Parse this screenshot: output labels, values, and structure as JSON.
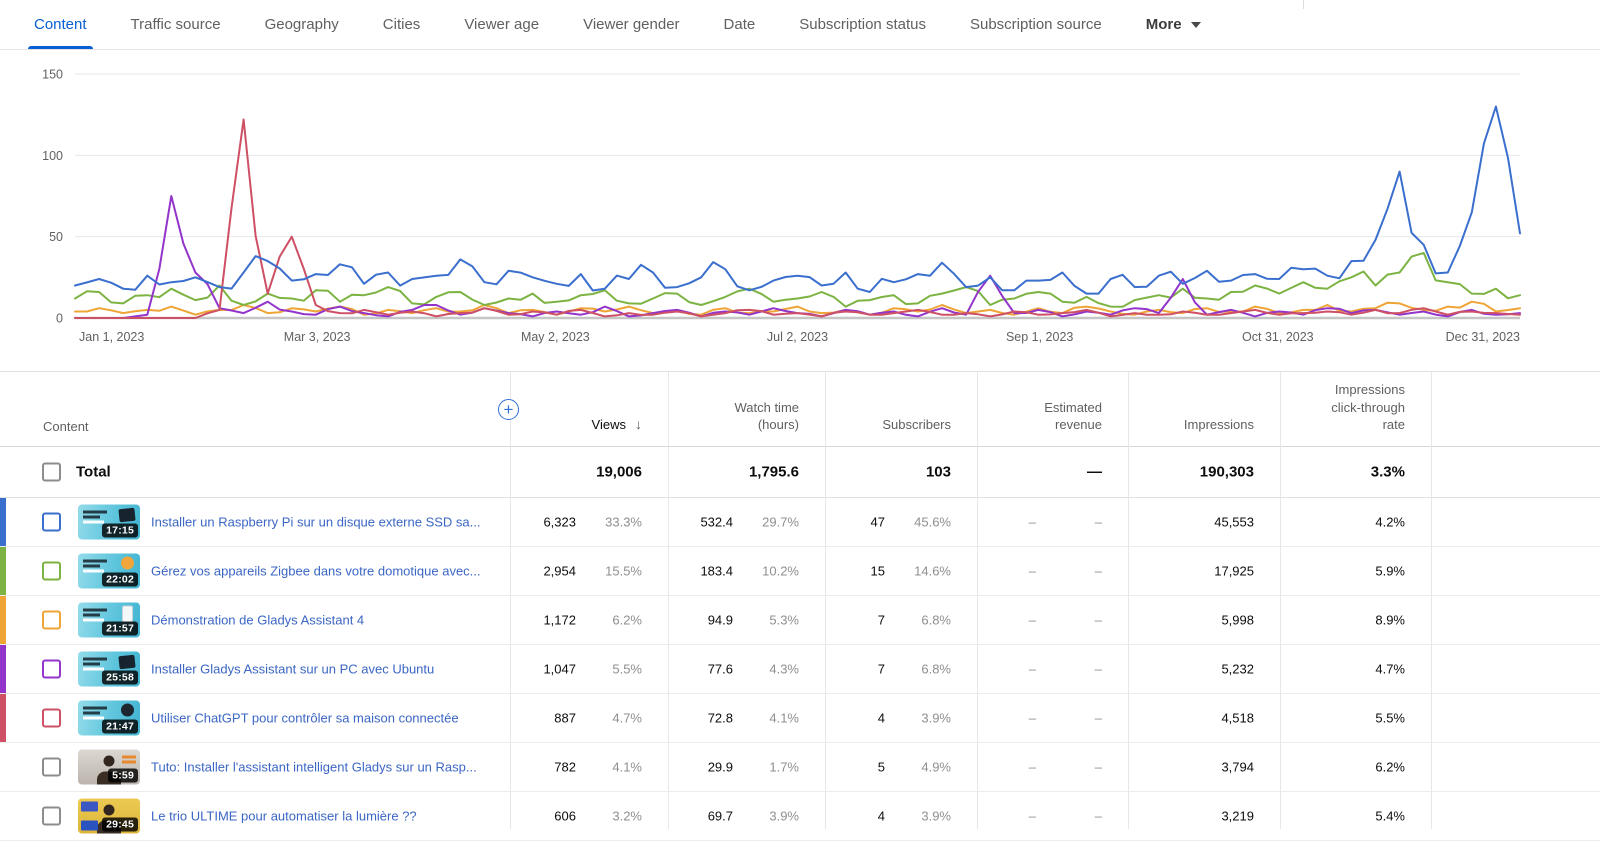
{
  "colors": {
    "accent": "#065fd4",
    "link": "#3b66c4",
    "series": [
      "#3b6fce",
      "#7cb342",
      "#efa436",
      "#9334cb",
      "#ce5064"
    ],
    "grid": "#e8e8e8",
    "axis_text": "#616161",
    "pct_gray": "#8f8f8f"
  },
  "tabs": {
    "items": [
      {
        "label": "Content",
        "active": true
      },
      {
        "label": "Traffic source",
        "active": false
      },
      {
        "label": "Geography",
        "active": false
      },
      {
        "label": "Cities",
        "active": false
      },
      {
        "label": "Viewer age",
        "active": false
      },
      {
        "label": "Viewer gender",
        "active": false
      },
      {
        "label": "Date",
        "active": false
      },
      {
        "label": "Subscription status",
        "active": false
      },
      {
        "label": "Subscription source",
        "active": false
      }
    ],
    "more_label": "More"
  },
  "chart_data": {
    "type": "line",
    "title": "",
    "xlabel": "",
    "ylabel": "",
    "grid": true,
    "legend": "none",
    "ylim": [
      0,
      150
    ],
    "y_ticks": [
      0,
      50,
      100,
      150
    ],
    "days_total": 364,
    "x_tick_labels": [
      {
        "text": "Jan 1, 2023",
        "day": 0
      },
      {
        "text": "Mar 3, 2023",
        "day": 61
      },
      {
        "text": "May 2, 2023",
        "day": 121
      },
      {
        "text": "Jul 2, 2023",
        "day": 182
      },
      {
        "text": "Sep 1, 2023",
        "day": 243
      },
      {
        "text": "Oct 31, 2023",
        "day": 303
      },
      {
        "text": "Dec 31, 2023",
        "day": 364
      }
    ],
    "series": [
      {
        "name": "Installer un Raspberry Pi sur un disque externe SSD sa...",
        "color": "#3b6fce",
        "values": [
          20,
          24,
          18,
          26,
          22,
          25,
          19,
          28,
          35,
          23,
          27,
          33,
          21,
          28,
          24,
          26,
          36,
          22,
          29,
          25,
          21,
          27,
          18,
          24,
          28,
          19,
          25,
          30,
          17,
          23,
          26,
          20,
          28,
          16,
          22,
          27,
          34,
          19,
          25,
          17,
          23,
          28,
          15,
          24,
          19,
          26,
          21,
          29,
          23,
          27,
          24,
          30,
          26,
          35,
          48,
          90,
          45,
          28,
          65,
          130,
          52
        ]
      },
      {
        "name": "Gérez vos appareils Zigbee dans votre domotique avec...",
        "color": "#7cb342",
        "values": [
          12,
          16,
          9,
          14,
          18,
          11,
          20,
          8,
          15,
          12,
          17,
          10,
          14,
          19,
          9,
          13,
          16,
          8,
          12,
          15,
          10,
          14,
          17,
          9,
          12,
          15,
          8,
          13,
          18,
          10,
          12,
          16,
          7,
          11,
          14,
          9,
          15,
          19,
          8,
          12,
          16,
          10,
          13,
          7,
          11,
          14,
          18,
          12,
          16,
          20,
          15,
          22,
          18,
          25,
          20,
          28,
          40,
          22,
          15,
          18,
          14
        ]
      },
      {
        "name": "Démonstration de Gladys Assistant 4",
        "color": "#efa436",
        "values": [
          4,
          6,
          3,
          5,
          7,
          2,
          5,
          8,
          3,
          6,
          4,
          7,
          2,
          5,
          3,
          6,
          4,
          8,
          3,
          5,
          2,
          6,
          4,
          7,
          3,
          5,
          2,
          6,
          3,
          4,
          7,
          3,
          5,
          2,
          6,
          4,
          8,
          3,
          5,
          2,
          6,
          3,
          7,
          4,
          2,
          5,
          3,
          6,
          4,
          7,
          3,
          5,
          8,
          4,
          6,
          9,
          5,
          7,
          10,
          4,
          6
        ]
      },
      {
        "name": "Installer Gladys Assistant sur un PC avec Ubuntu",
        "color": "#9334cb",
        "values": [
          0,
          0,
          0,
          2,
          75,
          28,
          6,
          3,
          10,
          4,
          2,
          7,
          3,
          1,
          5,
          8,
          2,
          6,
          3,
          1,
          4,
          2,
          7,
          1,
          3,
          5,
          1,
          4,
          2,
          6,
          3,
          1,
          5,
          2,
          4,
          1,
          6,
          2,
          26,
          3,
          5,
          1,
          4,
          2,
          6,
          3,
          24,
          2,
          5,
          1,
          4,
          2,
          6,
          3,
          5,
          2,
          4,
          1,
          5,
          2,
          3
        ]
      },
      {
        "name": "Utiliser ChatGPT pour contrôler sa maison connectée",
        "color": "#ce5064",
        "values": [
          0,
          0,
          0,
          0,
          0,
          0,
          5,
          122,
          15,
          50,
          8,
          3,
          5,
          2,
          4,
          1,
          3,
          6,
          2,
          4,
          2,
          5,
          1,
          3,
          2,
          4,
          1,
          3,
          5,
          2,
          3,
          1,
          4,
          2,
          3,
          5,
          2,
          3,
          1,
          4,
          2,
          3,
          5,
          1,
          3,
          2,
          4,
          2,
          3,
          5,
          2,
          3,
          4,
          2,
          5,
          3,
          6,
          2,
          4,
          3,
          2
        ]
      }
    ]
  },
  "table": {
    "content_header": "Content",
    "add_metric_icon": "+",
    "sort_icon": "↓",
    "columns": [
      {
        "id": "views",
        "label": "Views",
        "sorted": true
      },
      {
        "id": "watch",
        "label": "Watch time\n(hours)",
        "sorted": false
      },
      {
        "id": "subscribers",
        "label": "Subscribers",
        "sorted": false
      },
      {
        "id": "revenue",
        "label": "Estimated\nrevenue",
        "sorted": false
      },
      {
        "id": "impressions",
        "label": "Impressions",
        "sorted": false
      },
      {
        "id": "ctr",
        "label": "Impressions\nclick-through\nrate",
        "sorted": false
      }
    ],
    "total": {
      "label": "Total",
      "views": "19,006",
      "watch": "1,795.6",
      "subscribers": "103",
      "revenue": "—",
      "impressions": "190,303",
      "ctr": "3.3%"
    },
    "rows": [
      {
        "title": "Installer un Raspberry Pi sur un disque externe SSD sa...",
        "duration": "17:15",
        "color": "#3b6fce",
        "thumb": {
          "style": "card",
          "accent": "device"
        },
        "views": [
          "6,323",
          "33.3%"
        ],
        "watch": [
          "532.4",
          "29.7%"
        ],
        "subscribers": [
          "47",
          "45.6%"
        ],
        "revenue": [
          "–",
          "–"
        ],
        "impressions": "45,553",
        "ctr": "4.2%"
      },
      {
        "title": "Gérez vos appareils Zigbee dans votre domotique avec...",
        "duration": "22:02",
        "color": "#7cb342",
        "thumb": {
          "style": "card",
          "accent": "orange-circle"
        },
        "views": [
          "2,954",
          "15.5%"
        ],
        "watch": [
          "183.4",
          "10.2%"
        ],
        "subscribers": [
          "15",
          "14.6%"
        ],
        "revenue": [
          "–",
          "–"
        ],
        "impressions": "17,925",
        "ctr": "5.9%"
      },
      {
        "title": "Démonstration de Gladys Assistant 4",
        "duration": "21:57",
        "color": "#efa436",
        "thumb": {
          "style": "card",
          "accent": "phone"
        },
        "views": [
          "1,172",
          "6.2%"
        ],
        "watch": [
          "94.9",
          "5.3%"
        ],
        "subscribers": [
          "7",
          "6.8%"
        ],
        "revenue": [
          "–",
          "–"
        ],
        "impressions": "5,998",
        "ctr": "8.9%"
      },
      {
        "title": "Installer Gladys Assistant sur un PC avec Ubuntu",
        "duration": "25:58",
        "color": "#9334cb",
        "thumb": {
          "style": "card",
          "accent": "device"
        },
        "views": [
          "1,047",
          "5.5%"
        ],
        "watch": [
          "77.6",
          "4.3%"
        ],
        "subscribers": [
          "7",
          "6.8%"
        ],
        "revenue": [
          "–",
          "–"
        ],
        "impressions": "5,232",
        "ctr": "4.7%"
      },
      {
        "title": "Utiliser ChatGPT pour contrôler sa maison connectée",
        "duration": "21:47",
        "color": "#ce5064",
        "thumb": {
          "style": "card",
          "accent": "dark-circle"
        },
        "views": [
          "887",
          "4.7%"
        ],
        "watch": [
          "72.8",
          "4.1%"
        ],
        "subscribers": [
          "4",
          "3.9%"
        ],
        "revenue": [
          "–",
          "–"
        ],
        "impressions": "4,518",
        "ctr": "5.5%"
      },
      {
        "title": "Tuto: Installer l'assistant intelligent Gladys sur un Rasp...",
        "duration": "5:59",
        "color": null,
        "thumb": {
          "style": "photo-gray",
          "accent": "orange-text"
        },
        "views": [
          "782",
          "4.1%"
        ],
        "watch": [
          "29.9",
          "1.7%"
        ],
        "subscribers": [
          "5",
          "4.9%"
        ],
        "revenue": [
          "–",
          "–"
        ],
        "impressions": "3,794",
        "ctr": "6.2%"
      },
      {
        "title": "Le trio ULTIME pour automatiser la lumière ??",
        "duration": "29:45",
        "color": null,
        "thumb": {
          "style": "photo-yellow",
          "accent": "blue-labels"
        },
        "views": [
          "606",
          "3.2%"
        ],
        "watch": [
          "69.7",
          "3.9%"
        ],
        "subscribers": [
          "4",
          "3.9%"
        ],
        "revenue": [
          "–",
          "–"
        ],
        "impressions": "3,219",
        "ctr": "5.4%"
      }
    ]
  }
}
